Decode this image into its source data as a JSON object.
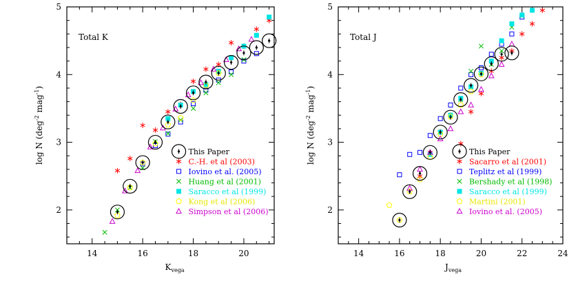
{
  "chart_data": [
    {
      "type": "scatter",
      "title": "Total K",
      "xlabel": "K",
      "xlabel_sub": "vega",
      "ylabel": "log N (deg",
      "ylabel_sup1": "-2",
      "ylabel_mid": " mag",
      "ylabel_sup2": "-1",
      "ylabel_end": ")",
      "xlim": [
        13,
        21.2
      ],
      "ylim": [
        1.5,
        5
      ],
      "xticks": [
        14,
        16,
        18,
        20
      ],
      "yticks": [
        2,
        3,
        4,
        5
      ],
      "xtick_labels": [
        "14",
        "16",
        "18",
        "20"
      ],
      "ytick_labels": [
        "2",
        "3",
        "4",
        "5"
      ],
      "legend_position": "bottom-right",
      "series": [
        {
          "name": "This Paper",
          "marker": "circle-dot",
          "color": "#000000",
          "x": [
            15.0,
            15.5,
            16.0,
            16.5,
            17.0,
            17.5,
            18.0,
            18.5,
            19.0,
            19.5,
            20.0,
            20.5,
            21.0
          ],
          "y": [
            1.97,
            2.35,
            2.7,
            3.0,
            3.3,
            3.53,
            3.73,
            3.89,
            4.02,
            4.18,
            4.32,
            4.4,
            4.5
          ]
        },
        {
          "name": "C.-H. et al (2003)",
          "marker": "star",
          "color": "#ff0000",
          "x": [
            15.0,
            15.5,
            16.0,
            16.5,
            17.0,
            17.5,
            18.0,
            18.5,
            19.0,
            19.5,
            20.0,
            20.5,
            21.0
          ],
          "y": [
            2.58,
            2.76,
            3.25,
            3.18,
            3.45,
            3.56,
            3.9,
            4.08,
            4.15,
            4.47,
            4.42,
            4.67,
            4.8
          ]
        },
        {
          "name": "Iovino et al. (2005)",
          "marker": "square",
          "color": "#0000ff",
          "x": [
            16.0,
            16.5,
            17.0,
            17.5,
            18.0,
            18.5,
            19.0,
            19.5,
            20.0,
            20.5
          ],
          "y": [
            2.68,
            2.95,
            3.12,
            3.3,
            3.57,
            3.77,
            3.92,
            4.04,
            4.2,
            4.31
          ]
        },
        {
          "name": "Huang et al (2001)",
          "marker": "x",
          "color": "#00bb00",
          "x": [
            14.5,
            15.0,
            15.5,
            16.0,
            16.5,
            17.0,
            17.5,
            18.0,
            18.5,
            19.0,
            19.5,
            20.0
          ],
          "y": [
            1.67,
            2.0,
            2.33,
            2.62,
            3.01,
            3.13,
            3.33,
            3.5,
            3.73,
            3.88,
            4.0,
            4.22
          ]
        },
        {
          "name": "Saracco et al (1999)",
          "marker": "filled-square",
          "color": "#00e5e5",
          "x": [
            17.0,
            17.5,
            18.0,
            18.5,
            19.0,
            19.5,
            20.0,
            20.5,
            21.0
          ],
          "y": [
            3.35,
            3.55,
            3.75,
            3.85,
            4.05,
            4.25,
            4.42,
            4.58,
            4.85
          ]
        },
        {
          "name": "Kong et al (2006)",
          "marker": "pentagon",
          "color": "#ffff00",
          "x": [
            15.0,
            15.5,
            16.0,
            16.5,
            17.0,
            17.5,
            18.0,
            18.5,
            19.0
          ],
          "y": [
            1.92,
            2.33,
            2.7,
            2.98,
            3.26,
            3.36,
            3.62,
            3.84,
            4.02
          ]
        },
        {
          "name": "Simpson et al (2006)",
          "marker": "triangle",
          "color": "#cc00cc",
          "x": [
            14.8,
            15.3,
            15.8,
            16.3,
            16.8,
            17.3,
            17.8,
            18.3,
            18.8,
            19.3,
            19.8,
            20.3
          ],
          "y": [
            1.83,
            2.28,
            2.58,
            2.93,
            3.21,
            3.49,
            3.7,
            3.88,
            4.08,
            4.22,
            4.38,
            4.52
          ]
        }
      ]
    },
    {
      "type": "scatter",
      "title": "Total J",
      "xlabel": "J",
      "xlabel_sub": "vega",
      "ylabel": "log N (deg",
      "ylabel_sup1": "-2",
      "ylabel_mid": " mag",
      "ylabel_sup2": "-1",
      "ylabel_end": ")",
      "xlim": [
        13,
        24
      ],
      "ylim": [
        1.5,
        5
      ],
      "xticks": [
        14,
        16,
        18,
        20,
        22,
        24
      ],
      "yticks": [
        2,
        3,
        4,
        5
      ],
      "xtick_labels": [
        "14",
        "16",
        "18",
        "20",
        "22",
        "24"
      ],
      "ytick_labels": [
        "2",
        "3",
        "4",
        "5"
      ],
      "legend_position": "bottom-right",
      "series": [
        {
          "name": "This Paper",
          "marker": "circle-dot",
          "color": "#000000",
          "x": [
            16.0,
            16.5,
            17.0,
            17.5,
            18.0,
            18.5,
            19.0,
            19.5,
            20.0,
            20.5,
            21.0,
            21.5
          ],
          "y": [
            1.85,
            2.27,
            2.54,
            2.85,
            3.15,
            3.37,
            3.63,
            3.84,
            4.01,
            4.16,
            4.3,
            4.32
          ]
        },
        {
          "name": "Sacarro et al (2001)",
          "marker": "star",
          "color": "#ff0000",
          "x": [
            17.0,
            17.5,
            18.0,
            18.5,
            19.0,
            19.5,
            20.0,
            20.5,
            21.0,
            21.5,
            22.0,
            22.5,
            23.0
          ],
          "y": [
            2.5,
            2.85,
            3.15,
            3.4,
            2.98,
            3.45,
            3.72,
            4.05,
            4.25,
            4.35,
            4.6,
            4.75,
            4.95
          ]
        },
        {
          "name": "Teplitz et al (1999)",
          "marker": "square",
          "color": "#0000ff",
          "x": [
            16.0,
            16.5,
            17.0,
            17.5,
            18.0,
            18.5,
            19.0,
            19.5,
            20.0,
            20.5,
            21.0,
            21.5,
            22.0
          ],
          "y": [
            2.52,
            2.82,
            2.85,
            3.1,
            3.35,
            3.55,
            3.8,
            4.0,
            4.1,
            4.3,
            4.45,
            4.6,
            4.85
          ]
        },
        {
          "name": "Bershady et al (1998)",
          "marker": "x",
          "color": "#00bb00",
          "x": [
            18.5,
            19.0,
            19.5,
            20.0,
            20.5,
            21.0,
            21.5,
            22.0
          ],
          "y": [
            3.4,
            3.63,
            4.05,
            4.42,
            4.15,
            4.35,
            4.7,
            4.87
          ]
        },
        {
          "name": "Saracco et al (1999)",
          "marker": "filled-square",
          "color": "#00e5e5",
          "x": [
            17.5,
            18.0,
            18.5,
            19.0,
            19.5,
            20.0,
            20.5,
            21.0,
            21.5,
            22.0,
            22.5
          ],
          "y": [
            2.82,
            3.15,
            3.4,
            3.65,
            3.82,
            4.02,
            4.2,
            4.5,
            4.75,
            4.88,
            4.95
          ]
        },
        {
          "name": "Martini (2001)",
          "marker": "pentagon",
          "color": "#ffff00",
          "x": [
            15.5,
            16.0,
            16.5,
            17.0,
            17.5,
            18.0,
            18.5,
            19.0,
            19.5,
            20.0
          ],
          "y": [
            2.07,
            1.85,
            2.27,
            2.45,
            2.78,
            3.12,
            3.38,
            3.55,
            3.75,
            4.0
          ]
        },
        {
          "name": "Iovino et al. (2005)",
          "marker": "triangle",
          "color": "#cc00cc",
          "x": [
            16.5,
            17.0,
            17.5,
            18.0,
            18.5,
            19.0,
            19.5,
            20.0,
            20.5,
            21.0,
            21.5
          ],
          "y": [
            2.32,
            2.6,
            2.85,
            3.05,
            3.2,
            3.45,
            3.55,
            3.78,
            3.98,
            4.15,
            4.45
          ]
        }
      ]
    }
  ]
}
